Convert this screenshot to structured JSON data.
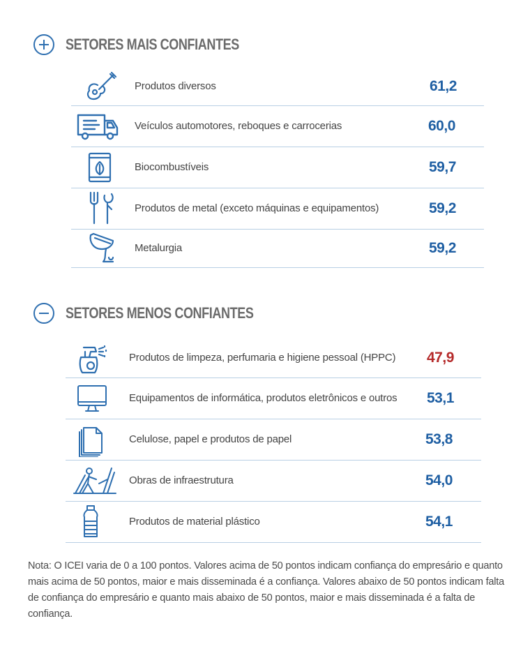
{
  "top_section": {
    "title": "SETORES MAIS CONFIANTES",
    "items": [
      {
        "label": "Produtos diversos",
        "value": "61,2",
        "icon": "guitar-icon"
      },
      {
        "label": "Veículos automotores, reboques e carrocerias",
        "value": "60,0",
        "icon": "truck-icon"
      },
      {
        "label": "Biocombustíveis",
        "value": "59,7",
        "icon": "biofuel-barrel-icon"
      },
      {
        "label": "Produtos de metal (exceto máquinas e equipamentos)",
        "value": "59,2",
        "icon": "fork-wrench-icon"
      },
      {
        "label": "Metalurgia",
        "value": "59,2",
        "icon": "crucible-pour-icon"
      }
    ]
  },
  "bottom_section": {
    "title": "SETORES MENOS CONFIANTES",
    "items": [
      {
        "label": "Produtos de limpeza, perfumaria e higiene pessoal (HPPC)",
        "value": "47,9",
        "icon": "spray-bottle-icon"
      },
      {
        "label": "Equipamentos de informática, produtos eletrônicos e outros",
        "value": "53,1",
        "icon": "monitor-icon"
      },
      {
        "label": "Celulose, papel e produtos de papel",
        "value": "53,8",
        "icon": "paper-stack-icon"
      },
      {
        "label": "Obras de infraestrutura",
        "value": "54,0",
        "icon": "road-worker-icon"
      },
      {
        "label": "Produtos de material plástico",
        "value": "54,1",
        "icon": "plastic-bottle-icon"
      }
    ]
  },
  "note": "Nota: O ICEI varia de 0 a 100 pontos. Valores acima de 50 pontos indicam confiança do empresário e quanto mais acima de 50 pontos, maior e mais disseminada é a confiança. Valores abaixo de 50 pontos indicam falta de confiança do empresário e quanto mais abaixo de 50 pontos, maior e mais disseminada é a falta de confiança.",
  "colors": {
    "accent": "#1f5fa3",
    "negative": "#b52a2a",
    "divider": "#b8cfe4",
    "icon": "#2e6fb0"
  }
}
